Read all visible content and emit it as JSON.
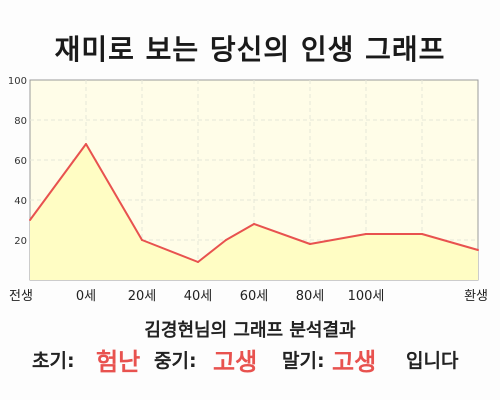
{
  "title": "재미로 보는 당신의 인생 그래프",
  "summary": "김경현님의 그래프 분석결과",
  "stages": {
    "early_label": "초기:",
    "early_value": "험난",
    "middle_label": "중기:",
    "middle_value": "고생",
    "late_label": "말기:",
    "late_value": "고생",
    "suffix": "입니다"
  },
  "colors": {
    "line": "#e8524f",
    "fill": "#fffdc4",
    "accent_text": "#e8524f",
    "grid": "#e6e6d8",
    "axis": "#555555"
  },
  "chart_data": {
    "type": "area",
    "title": "재미로 보는 당신의 인생 그래프",
    "xlabel": "",
    "ylabel": "",
    "x_tick_labels": [
      "전생",
      "0세",
      "20세",
      "40세",
      "60세",
      "80세",
      "100세",
      "환생"
    ],
    "y_ticks": [
      20,
      40,
      60,
      80,
      100
    ],
    "ylim": [
      0,
      100
    ],
    "grid": true,
    "legend": "none",
    "x": [
      -1,
      0,
      1,
      2,
      2.5,
      3,
      4,
      5,
      6,
      7
    ],
    "y": [
      30,
      68,
      20,
      9,
      20,
      28,
      18,
      23,
      23,
      15
    ]
  }
}
